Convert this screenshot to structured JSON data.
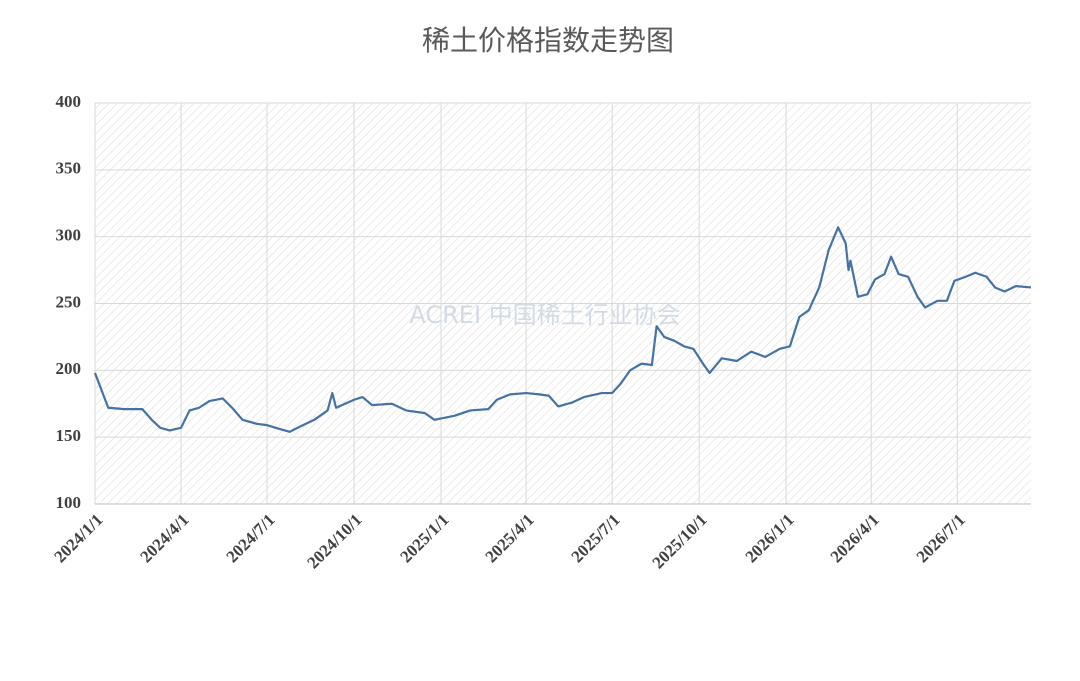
{
  "chart_data": {
    "type": "line",
    "title": "稀土价格指数走势图",
    "watermark": "ACREI 中国稀土行业协会",
    "x": [
      "2024/1/1",
      "2024/1/8",
      "2024/1/15",
      "2024/2/1",
      "2024/2/20",
      "2024/3/1",
      "2024/3/10",
      "2024/3/20",
      "2024/4/1",
      "2024/4/10",
      "2024/4/20",
      "2024/5/1",
      "2024/5/15",
      "2024/5/25",
      "2024/6/5",
      "2024/6/20",
      "2024/7/1",
      "2024/7/15",
      "2024/7/25",
      "2024/8/5",
      "2024/8/20",
      "2024/9/3",
      "2024/9/8",
      "2024/9/12",
      "2024/10/1",
      "2024/10/10",
      "2024/10/20",
      "2024/11/10",
      "2024/11/25",
      "2024/12/15",
      "2024/12/25",
      "2025/1/15",
      "2025/2/1",
      "2025/2/20",
      "2025/3/1",
      "2025/3/15",
      "2025/4/1",
      "2025/4/15",
      "2025/4/25",
      "2025/5/5",
      "2025/5/20",
      "2025/6/1",
      "2025/6/20",
      "2025/7/1",
      "2025/7/10",
      "2025/7/20",
      "2025/8/1",
      "2025/8/12",
      "2025/8/17",
      "2025/8/25",
      "2025/9/5",
      "2025/9/15",
      "2025/9/25",
      "2025/10/5",
      "2025/10/12",
      "2025/10/25",
      "2025/11/10",
      "2025/11/25",
      "2025/12/10",
      "2025/12/25",
      "2026/1/5",
      "2026/1/15",
      "2026/1/25",
      "2026/2/5",
      "2026/2/15",
      "2026/2/25",
      "2026/3/5",
      "2026/3/8",
      "2026/3/10",
      "2026/3/18",
      "2026/3/28",
      "2026/4/5",
      "2026/4/15",
      "2026/4/22",
      "2026/4/30",
      "2026/5/10",
      "2026/5/20",
      "2026/5/28",
      "2026/6/10",
      "2026/6/20",
      "2026/6/28",
      "2026/7/10",
      "2026/7/20",
      "2026/8/1",
      "2026/8/10",
      "2026/8/20",
      "2026/9/1",
      "2026/9/17"
    ],
    "series": [
      {
        "color": "#4472a4",
        "values": [
          198,
          185,
          172,
          171,
          171,
          163,
          157,
          155,
          157,
          170,
          172,
          177,
          179,
          172,
          163,
          160,
          159,
          156,
          154,
          158,
          163,
          170,
          183,
          172,
          178,
          180,
          174,
          175,
          170,
          168,
          163,
          166,
          170,
          171,
          178,
          182,
          183,
          182,
          181,
          173,
          176,
          180,
          183,
          183,
          190,
          200,
          205,
          204,
          233,
          225,
          222,
          218,
          216,
          205,
          198,
          209,
          207,
          214,
          210,
          216,
          218,
          240,
          245,
          262,
          290,
          307,
          295,
          275,
          282,
          255,
          257,
          268,
          272,
          285,
          272,
          270,
          255,
          247,
          252,
          252,
          267,
          270,
          273,
          270,
          262,
          259,
          263,
          262
        ]
      }
    ],
    "xlim": [
      "2024/1/1",
      "2026/9/17"
    ],
    "xticks": [
      "2024/1/1",
      "2024/4/1",
      "2024/7/1",
      "2024/10/1",
      "2025/1/1",
      "2025/4/1",
      "2025/7/1",
      "2025/10/1",
      "2026/1/1",
      "2026/4/1",
      "2026/7/1"
    ],
    "ylim": [
      100,
      400
    ],
    "yticks": [
      100,
      150,
      200,
      250,
      300,
      350,
      400
    ],
    "grid": true
  }
}
